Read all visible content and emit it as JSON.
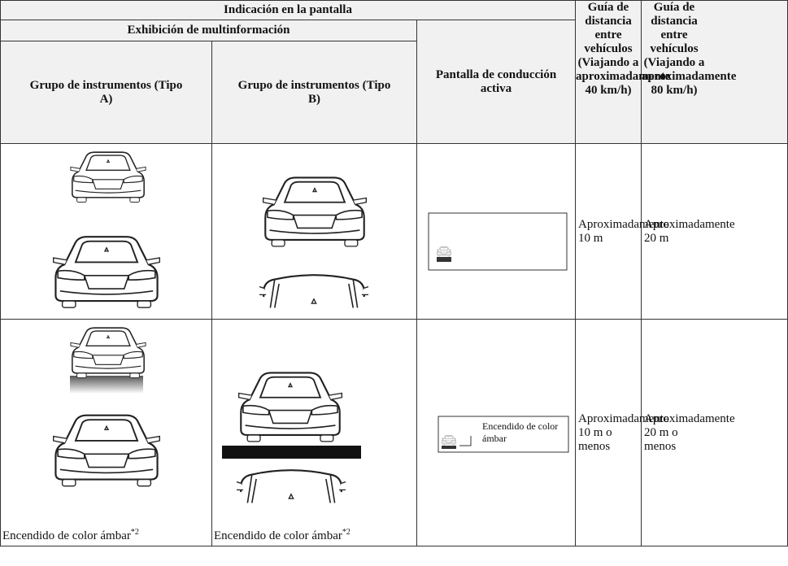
{
  "table": {
    "header": {
      "title": "Indicación en la pantalla",
      "multi": "Exhibición de multinformación",
      "type_a": "Grupo de instrumentos (Tipo A)",
      "type_b": "Grupo de instrumentos (Tipo B)",
      "active": "Pantalla de conducción activa",
      "guide_40": "Guía de distancia entre vehículos (Viajando a aproximadamente 40 km/h)",
      "guide_80": "Guía de distancia entre vehículos (Viajando a aproximadamente 80 km/h)"
    },
    "rows": [
      {
        "distance_40": "Aproximadamente 10 m",
        "distance_80": "Aproximadamente 20 m"
      },
      {
        "caption_a": "Encendido de color ámbar",
        "caption_a_note": "*2",
        "caption_b": "Encendido de color ámbar",
        "caption_b_note": "*2",
        "active_label": "Encendido de color ámbar",
        "distance_40": "Aproximadamente 10 m o menos",
        "distance_80": "Aproximadamente 20 m o menos"
      }
    ]
  }
}
